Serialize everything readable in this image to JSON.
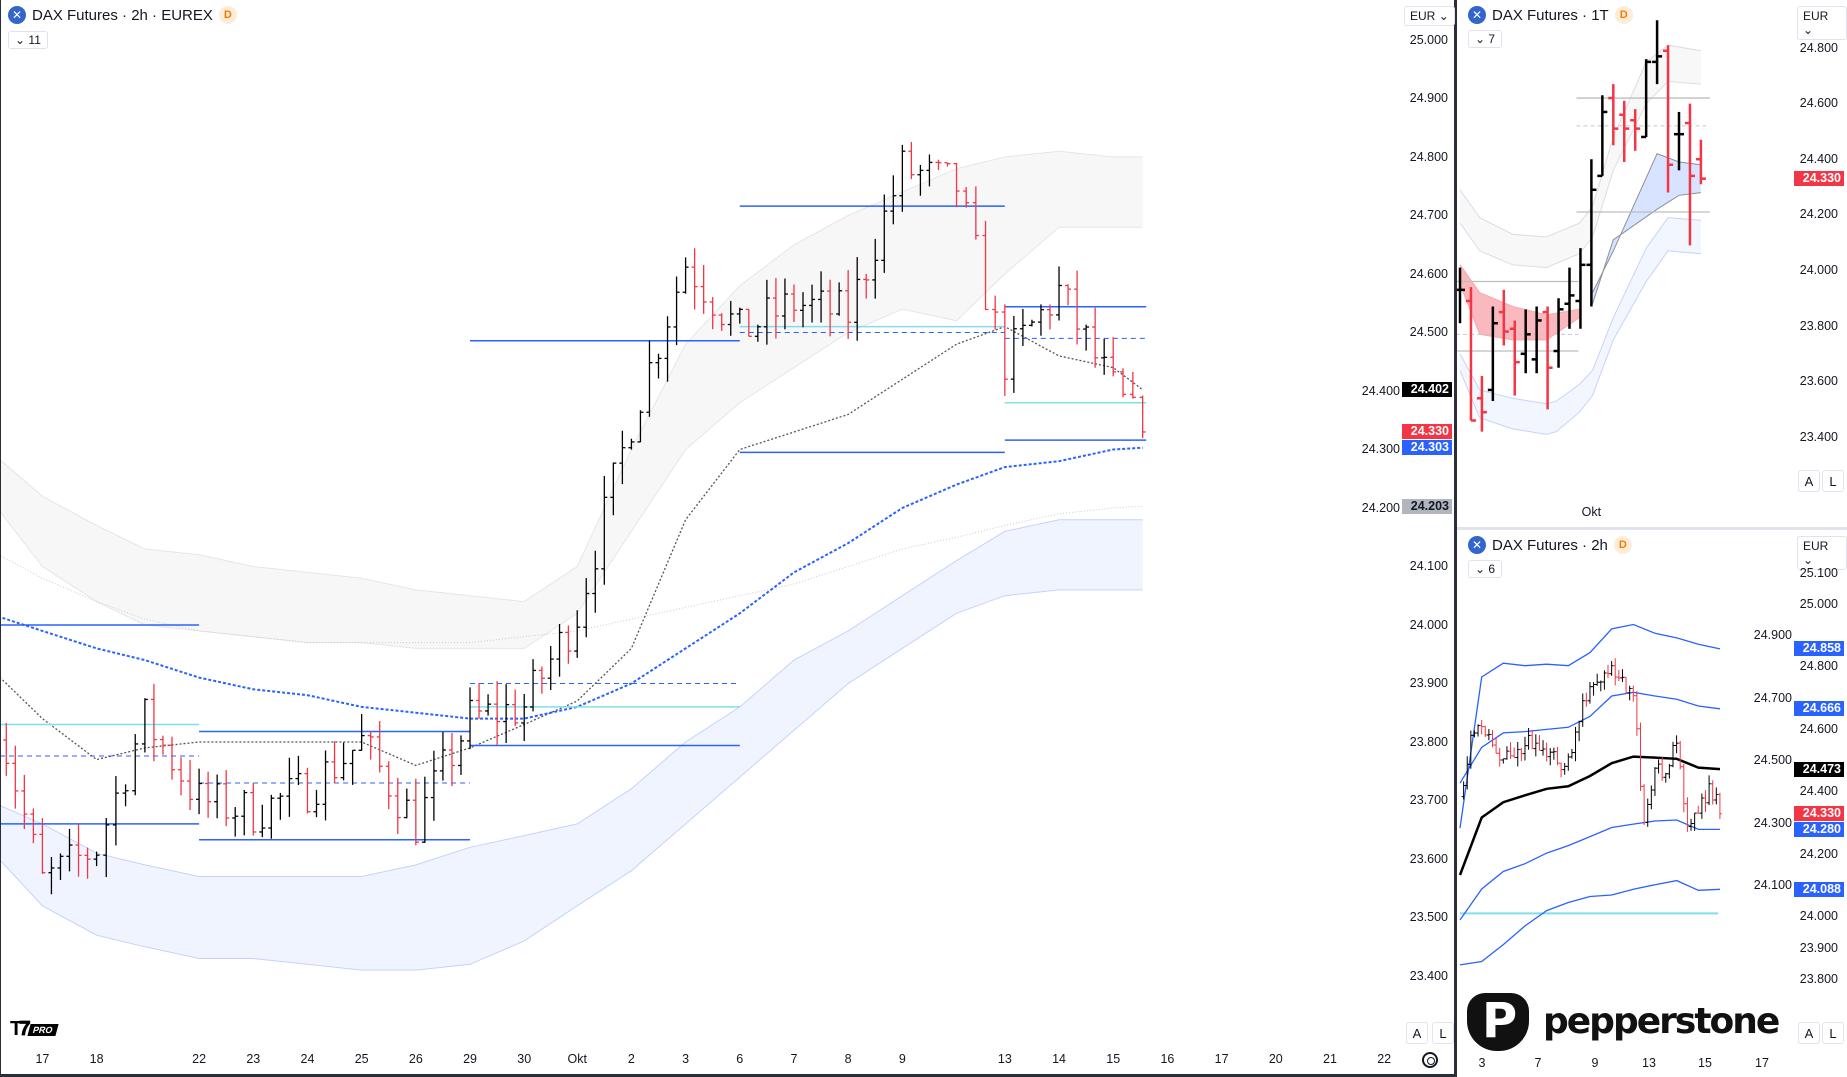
{
  "main": {
    "title": "DAX Futures · 2h · EUREX",
    "badge": "D",
    "indicators_count": "11",
    "currency": "EUR",
    "auto_label": "A",
    "log_label": "L",
    "price_axis": [
      "25.000",
      "24.900",
      "24.800",
      "24.700",
      "24.600",
      "24.500",
      "24.400",
      "24.300",
      "24.200",
      "24.100",
      "24.000",
      "23.900",
      "23.800",
      "23.700",
      "23.600",
      "23.500",
      "23.400"
    ],
    "price_labels": [
      {
        "value": "24.402",
        "color": "#000000"
      },
      {
        "value": "24.330",
        "color": "#f23645"
      },
      {
        "value": "24.303",
        "color": "#2962ff"
      },
      {
        "value": "24.203",
        "color": "#b2b5be"
      }
    ],
    "time_axis": [
      "17",
      "18",
      "22",
      "23",
      "24",
      "25",
      "26",
      "29",
      "30",
      "Okt",
      "2",
      "3",
      "6",
      "7",
      "8",
      "9",
      "13",
      "14",
      "15",
      "16",
      "17",
      "20",
      "21",
      "22"
    ]
  },
  "top_right": {
    "title": "DAX Futures · 1T",
    "badge": "D",
    "indicators_count": "7",
    "currency": "EUR",
    "auto_label": "A",
    "log_label": "L",
    "price_axis": [
      "24.800",
      "24.600",
      "24.400",
      "24.200",
      "24.000",
      "23.800",
      "23.600",
      "23.400"
    ],
    "price_labels": [
      {
        "value": "24.330",
        "color": "#f23645"
      }
    ],
    "time_axis": [
      "Okt"
    ]
  },
  "bottom_right": {
    "title": "DAX Futures · 2h",
    "badge": "D",
    "indicators_count": "6",
    "currency": "EUR",
    "auto_label": "A",
    "log_label": "L",
    "price_axis": [
      "25.100",
      "25.000",
      "24.900",
      "24.800",
      "24.700",
      "24.600",
      "24.500",
      "24.400",
      "24.300",
      "24.200",
      "24.100",
      "24.000",
      "23.900",
      "23.800"
    ],
    "price_labels": [
      {
        "value": "24.858",
        "color": "#2962ff"
      },
      {
        "value": "24.666",
        "color": "#2962ff"
      },
      {
        "value": "24.473",
        "color": "#000000"
      },
      {
        "value": "24.330",
        "color": "#f23645"
      },
      {
        "value": "24.280",
        "color": "#2962ff"
      },
      {
        "value": "24.088",
        "color": "#2962ff"
      }
    ],
    "time_axis": [
      "3",
      "7",
      "9",
      "13",
      "15",
      "17"
    ]
  },
  "branding": {
    "tv": "TV",
    "tv_tier": "PRO",
    "broker": "pepperstone"
  },
  "colors": {
    "up": "#000000",
    "down": "#f23645",
    "blue": "#2962ff",
    "cyan": "#80deea",
    "grey": "#787b86"
  },
  "chart_data": [
    {
      "type": "ohlc",
      "panel": "main",
      "timeframe": "2h",
      "days": [
        "16.09",
        "17.09",
        "18.09",
        "19.09",
        "22.09",
        "23.09",
        "24.09",
        "25.09",
        "26.09",
        "29.09",
        "30.09",
        "01.10",
        "02.10",
        "03.10",
        "06.10",
        "07.10",
        "08.10",
        "09.10",
        "10.10",
        "13.10",
        "14.10",
        "15.10",
        "last"
      ],
      "close_path": [
        23.9,
        23.56,
        23.62,
        23.84,
        23.7,
        23.68,
        23.72,
        23.8,
        23.66,
        23.84,
        23.86,
        24.02,
        24.35,
        24.62,
        24.5,
        24.55,
        24.53,
        24.78,
        24.75,
        24.45,
        24.57,
        24.4,
        24.33
      ],
      "ma_blue_dotted": [
        24.02,
        23.99,
        23.96,
        23.94,
        23.91,
        23.89,
        23.88,
        23.86,
        23.85,
        23.84,
        23.84,
        23.86,
        23.9,
        23.96,
        24.02,
        24.09,
        24.14,
        24.2,
        24.24,
        24.27,
        24.28,
        24.3,
        24.303
      ],
      "ma_grey_dotted": [
        23.93,
        23.84,
        23.77,
        23.79,
        23.8,
        23.8,
        23.8,
        23.8,
        23.76,
        23.79,
        23.83,
        23.87,
        23.96,
        24.18,
        24.3,
        24.33,
        24.36,
        24.42,
        24.48,
        24.51,
        24.46,
        24.44,
        24.402
      ],
      "ma_light": [
        24.13,
        24.08,
        24.04,
        24.01,
        23.99,
        23.98,
        23.97,
        23.97,
        23.97,
        23.97,
        23.98,
        23.99,
        24.01,
        24.03,
        24.05,
        24.07,
        24.1,
        24.13,
        24.15,
        24.17,
        24.19,
        24.2,
        24.203
      ],
      "upper_band": {
        "top": [
          24.3,
          24.22,
          24.17,
          24.13,
          24.12,
          24.1,
          24.09,
          24.08,
          24.06,
          24.05,
          24.04,
          24.1,
          24.3,
          24.48,
          24.58,
          24.65,
          24.7,
          24.74,
          24.78,
          24.8,
          24.81,
          24.8,
          24.8
        ],
        "bottom": [
          24.22,
          24.1,
          24.04,
          24.0,
          23.99,
          23.98,
          23.97,
          23.97,
          23.96,
          23.96,
          23.96,
          24.02,
          24.16,
          24.3,
          24.38,
          24.44,
          24.5,
          24.54,
          24.52,
          24.6,
          24.68,
          24.68,
          24.68
        ]
      },
      "lower_band": {
        "top": [
          23.7,
          23.66,
          23.61,
          23.59,
          23.57,
          23.57,
          23.57,
          23.57,
          23.59,
          23.62,
          23.64,
          23.66,
          23.72,
          23.8,
          23.86,
          23.94,
          23.99,
          24.05,
          24.11,
          24.16,
          24.18,
          24.18,
          24.18
        ],
        "bottom": [
          23.62,
          23.52,
          23.47,
          23.45,
          23.43,
          23.43,
          23.42,
          23.41,
          23.41,
          23.42,
          23.46,
          23.52,
          23.58,
          23.66,
          23.74,
          23.82,
          23.9,
          23.96,
          24.02,
          24.05,
          24.06,
          24.06,
          24.06
        ]
      },
      "weekly_levels": [
        {
          "from": "16.09",
          "to": "22.09",
          "solid": [
            24.0,
            23.66
          ],
          "dashed": [
            23.776
          ],
          "cyan": [
            23.83
          ]
        },
        {
          "from": "22.09",
          "to": "29.09",
          "solid": [
            23.818,
            23.633
          ],
          "dashed": [
            23.73
          ],
          "cyan": []
        },
        {
          "from": "29.09",
          "to": "06.10",
          "solid": [
            23.794,
            24.486
          ],
          "dashed": [
            23.9
          ],
          "cyan": [
            23.86
          ]
        },
        {
          "from": "06.10",
          "to": "13.10",
          "solid": [
            24.716,
            24.295
          ],
          "dashed": [
            24.5
          ],
          "cyan": [
            24.51
          ]
        },
        {
          "from": "13.10",
          "to": "last",
          "solid": [
            24.544,
            24.316
          ],
          "dashed": [
            24.49
          ],
          "cyan": [
            24.38
          ]
        }
      ],
      "ylim": [
        23.35,
        25.05
      ]
    },
    {
      "type": "ohlc",
      "panel": "top_right",
      "timeframe": "1T",
      "bars": [
        [
          23.93,
          24.01,
          23.81,
          23.93
        ],
        [
          23.89,
          23.94,
          23.46,
          23.46
        ],
        [
          23.54,
          23.62,
          23.42,
          23.49
        ],
        [
          23.57,
          23.87,
          23.53,
          23.81
        ],
        [
          23.85,
          23.93,
          23.73,
          23.78
        ],
        [
          23.79,
          23.82,
          23.55,
          23.67
        ],
        [
          23.7,
          23.86,
          23.63,
          23.77
        ],
        [
          23.68,
          23.87,
          23.63,
          23.82
        ],
        [
          23.85,
          23.87,
          23.5,
          23.65
        ],
        [
          23.71,
          23.9,
          23.65,
          23.86
        ],
        [
          23.88,
          24.01,
          23.79,
          23.91
        ],
        [
          23.89,
          24.08,
          23.79,
          24.02
        ],
        [
          24.02,
          24.4,
          23.87,
          24.29
        ],
        [
          24.34,
          24.63,
          24.34,
          24.57
        ],
        [
          24.62,
          24.67,
          24.45,
          24.51
        ],
        [
          24.56,
          24.61,
          24.39,
          24.51
        ],
        [
          24.54,
          24.58,
          24.43,
          24.51
        ],
        [
          24.48,
          24.76,
          24.48,
          24.75
        ],
        [
          24.75,
          24.9,
          24.67,
          24.77
        ],
        [
          24.79,
          24.81,
          24.28,
          24.38
        ],
        [
          24.49,
          24.57,
          24.36,
          24.49
        ],
        [
          24.53,
          24.6,
          24.09,
          24.34
        ],
        [
          24.4,
          24.47,
          24.31,
          24.33
        ]
      ],
      "okt_bar_index": 12,
      "upper_band": {
        "idx": [
          0,
          1.8,
          4.8,
          7.9,
          10.9,
          12.1,
          14,
          17,
          19,
          22
        ],
        "top": [
          24.29,
          24.19,
          24.13,
          24.12,
          24.17,
          24.23,
          24.48,
          24.75,
          24.81,
          24.79
        ],
        "bottom": [
          24.17,
          24.07,
          24.02,
          24.01,
          24.06,
          24.12,
          24.36,
          24.6,
          24.68,
          24.67
        ]
      },
      "mid_band": {
        "idx": [
          12.1,
          14,
          18,
          20,
          22
        ],
        "top": [
          23.92,
          24.07,
          24.42,
          24.39,
          24.38
        ],
        "bottom": [
          23.88,
          24.11,
          24.22,
          24.27,
          24.28
        ]
      },
      "red_band": {
        "idx": [
          0,
          1.8,
          4.8,
          7.9,
          10.9
        ],
        "top": [
          24.02,
          23.92,
          23.87,
          23.84,
          23.86
        ],
        "bottom": [
          23.95,
          23.77,
          23.75,
          23.75,
          23.83
        ]
      },
      "lower_band": {
        "idx": [
          0,
          1.8,
          4.8,
          7.9,
          8.8,
          10.9,
          12.1,
          14,
          17,
          19,
          22
        ],
        "top": [
          23.7,
          23.57,
          23.54,
          23.52,
          23.53,
          23.59,
          23.64,
          23.83,
          24.08,
          24.19,
          24.18
        ],
        "bottom": [
          23.64,
          23.47,
          23.43,
          23.41,
          23.42,
          23.49,
          23.55,
          23.75,
          23.96,
          24.07,
          24.06
        ]
      },
      "levels": [
        {
          "from": 0,
          "to": 11,
          "solid": [
            23.96,
            23.71
          ],
          "dashed": [
            23.77
          ]
        },
        {
          "from": 11,
          "to": 23,
          "solid": [
            24.62,
            24.21
          ],
          "dashed": [
            24.52
          ]
        }
      ],
      "ylim": [
        23.3,
        24.9
      ]
    },
    {
      "type": "ohlc",
      "panel": "bottom_right",
      "timeframe": "2h",
      "close_path": [
        24.385,
        24.581,
        24.609,
        24.55,
        24.506,
        24.51,
        24.548,
        24.556,
        24.513,
        24.492,
        24.512,
        24.625,
        24.737,
        24.752,
        24.804,
        24.767,
        24.708,
        24.302,
        24.476,
        24.458,
        24.556,
        24.289,
        24.332,
        24.426,
        24.33
      ],
      "channel_upper_2": [
        24.284,
        24.768,
        24.812,
        24.804,
        24.809,
        24.804,
        24.846,
        24.922,
        24.936,
        24.908,
        24.893,
        24.873,
        24.858
      ],
      "channel_upper_1": [
        24.428,
        24.543,
        24.589,
        24.593,
        24.6,
        24.607,
        24.642,
        24.707,
        24.719,
        24.707,
        24.697,
        24.675,
        24.666
      ],
      "mid_line": [
        24.134,
        24.318,
        24.367,
        24.389,
        24.41,
        24.418,
        24.451,
        24.492,
        24.513,
        24.51,
        24.506,
        24.478,
        24.473
      ],
      "channel_lower_1": [
        23.99,
        24.089,
        24.145,
        24.17,
        24.204,
        24.228,
        24.257,
        24.286,
        24.297,
        24.307,
        24.31,
        24.28,
        24.28
      ],
      "channel_lower_2": [
        23.846,
        23.857,
        23.911,
        23.971,
        24.02,
        24.046,
        24.065,
        24.07,
        24.088,
        24.103,
        24.116,
        24.085,
        24.088
      ],
      "cyan_level": 24.011,
      "ylim": [
        23.75,
        25.15
      ]
    }
  ]
}
